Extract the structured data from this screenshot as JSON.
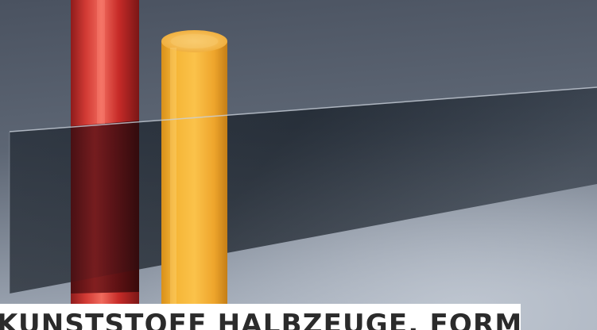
{
  "banner": {
    "text": "KUNSTSTOFF HALBZEUGE, FORMTEILE"
  },
  "scene": {
    "objects": [
      "red-rod",
      "yellow-rod",
      "transparent-sheet"
    ],
    "colors": {
      "background_top": "#4c5563",
      "background_bottom": "#9aa4b2",
      "red_rod": "#c8302c",
      "yellow_rod": "#f2ae2e",
      "sheet": "#1e2630"
    }
  }
}
